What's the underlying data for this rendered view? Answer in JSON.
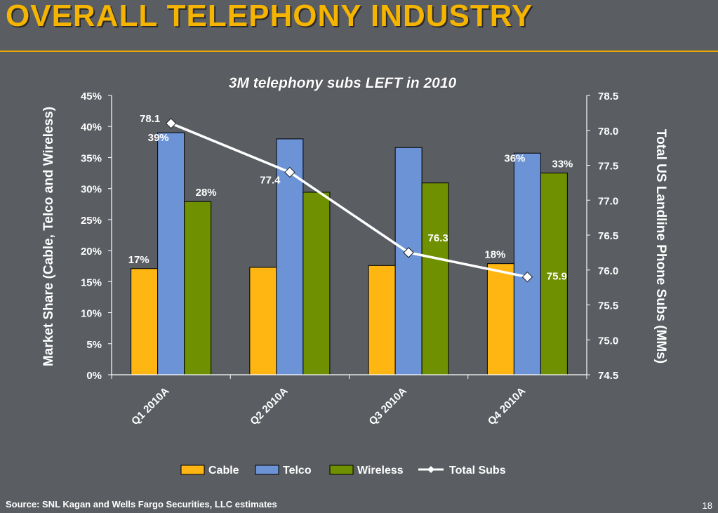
{
  "slide": {
    "title": "OVERALL TELEPHONY INDUSTRY",
    "source": "Source: SNL Kagan and Wells Fargo Securities, LLC estimates",
    "page_number": "18"
  },
  "colors": {
    "background": "#5a5d62",
    "title": "#f5b400",
    "cable": "#ffb612",
    "telco": "#6b93d6",
    "wireless": "#6f9000",
    "total_subs": "#ffffff"
  },
  "chart_data": {
    "type": "bar",
    "title": "3M telephony subs LEFT in 2010",
    "categories": [
      "Q1 2010A",
      "Q2 2010A",
      "Q3 2010A",
      "Q4 2010A"
    ],
    "ylabel": "Market Share (Cable, Telco and Wireless)",
    "y2label": "Total US Landline Phone Subs (MMs)",
    "ylim": [
      0,
      45
    ],
    "y2lim": [
      74.5,
      78.5
    ],
    "yticks": [
      "0%",
      "5%",
      "10%",
      "15%",
      "20%",
      "25%",
      "30%",
      "35%",
      "40%",
      "45%"
    ],
    "y2ticks": [
      "74.5",
      "75.0",
      "75.5",
      "76.0",
      "76.5",
      "77.0",
      "77.5",
      "78.0",
      "78.5"
    ],
    "series": [
      {
        "name": "Cable",
        "type": "bar",
        "values": [
          17.1,
          17.3,
          17.6,
          17.9
        ],
        "labels": [
          "17%",
          "",
          "",
          "18%"
        ]
      },
      {
        "name": "Telco",
        "type": "bar",
        "values": [
          39.0,
          38.0,
          36.6,
          35.7
        ],
        "labels": [
          "39%",
          "",
          "",
          "36%"
        ]
      },
      {
        "name": "Wireless",
        "type": "bar",
        "values": [
          27.9,
          29.4,
          30.9,
          32.5
        ],
        "labels": [
          "28%",
          "",
          "",
          "33%"
        ]
      },
      {
        "name": "Total Subs",
        "type": "line",
        "axis": "secondary",
        "values": [
          78.1,
          77.4,
          76.25,
          75.9
        ],
        "labels": [
          "78.1",
          "77.4",
          "76.3",
          "75.9"
        ]
      }
    ],
    "legend_position": "bottom",
    "grid": false
  }
}
